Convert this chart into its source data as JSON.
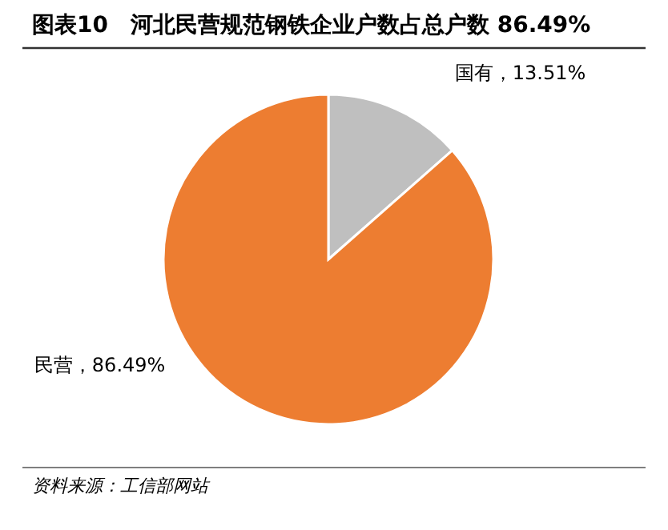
{
  "chart_data": {
    "type": "pie",
    "title": "图表10　河北民营规范钢铁企业户数占总户数 86.49%",
    "categories": [
      "国有",
      "民营"
    ],
    "values": [
      13.51,
      86.49
    ],
    "colors": [
      "#bfbfbf",
      "#ed7d31"
    ],
    "value_labels": [
      "，13.51%",
      "，86.49%"
    ],
    "annotations": [
      "资料来源：工信部网站"
    ]
  }
}
